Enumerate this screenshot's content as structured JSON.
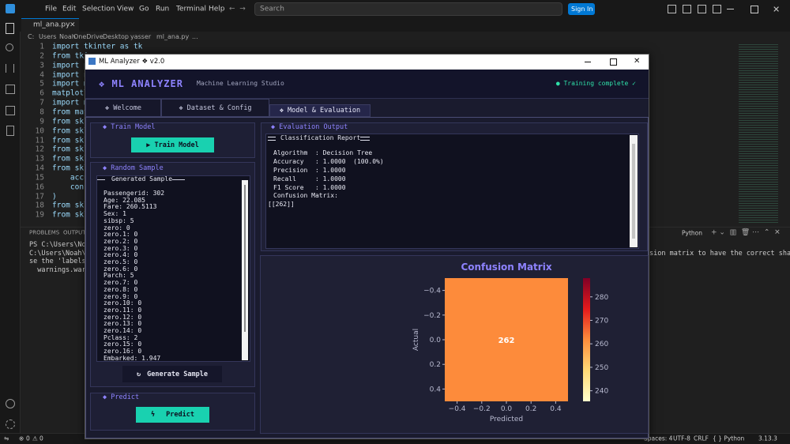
{
  "vscode": {
    "menu": [
      "File",
      "Edit",
      "Selection",
      "View",
      "Go",
      "Run",
      "Terminal",
      "Help"
    ],
    "search": "Search",
    "sign_in": "Sign In",
    "tab": "ml_ana.py",
    "breadcrumb": [
      "C:",
      "Users",
      "Noah",
      "OneDrive",
      "Desktop",
      "yasser",
      "ml_ana.py",
      "..."
    ],
    "code": {
      "numbers": [
        1,
        2,
        3,
        4,
        5,
        6,
        7,
        8,
        9,
        10,
        11,
        12,
        13,
        14,
        15,
        16,
        17,
        18,
        19
      ],
      "lines": [
        "import tkinter as tk",
        "from tkin",
        "import p",
        "import nu",
        "import ma",
        "matplotli",
        "import ma",
        "from matp",
        "from skle",
        "from skle",
        "from skle",
        "from skle",
        "from skle",
        "from skle",
        "    accur",
        "    confu",
        ")",
        "from skle",
        "from skle"
      ]
    },
    "panel_tabs": [
      "PROBLEMS",
      "OUTPUT"
    ],
    "terminal": [
      "PS C:\\Users\\Noah",
      "C:\\Users\\Noah\\App",
      "se the 'labels' p",
      "  warnings.warn("
    ],
    "terminal_right": "sion matrix to have the correct shape, u",
    "terminal_profile": "Python",
    "status": {
      "errors": 0,
      "warnings": 0,
      "spaces": "Spaces: 4",
      "encoding": "UTF-8",
      "eol": "CRLF",
      "language": "{ } Python",
      "version": "3.13.3"
    }
  },
  "app": {
    "window_title": "ML Analyzer ❖ v2.0",
    "brand": "❖ ML ANALYZER",
    "subtitle": "Machine Learning Studio",
    "status": "● Training complete ✓",
    "tabs": [
      "❖  Welcome",
      "❖  Dataset & Config",
      "❖  Model & Evaluation"
    ],
    "train": {
      "header": "◆ Train Model",
      "button": "▶  Train Model"
    },
    "sample": {
      "header": "◆ Random Sample",
      "group": "Generated Sample",
      "lines": [
        "Passengerid: 302",
        "Age: 22.085",
        "Fare: 260.5113",
        "Sex: 1",
        "sibsp: 5",
        "zero: 0",
        "zero.1: 0",
        "zero.2: 0",
        "zero.3: 0",
        "zero.4: 0",
        "zero.5: 0",
        "zero.6: 0",
        "Parch: 5",
        "zero.7: 0",
        "zero.8: 0",
        "zero.9: 0",
        "zero.10: 0",
        "zero.11: 0",
        "zero.12: 0",
        "zero.13: 0",
        "zero.14: 0",
        "Pclass: 2",
        "zero.15: 0",
        "zero.16: 0",
        "Embarked: 1.947"
      ],
      "button": "Generate Sample"
    },
    "predict": {
      "header": "◆ Predict",
      "button": "Predict"
    },
    "evaluation": {
      "header": "◆ Evaluation Output",
      "report_title": "Classification Report",
      "metrics": [
        "Algorithm  : Decision Tree",
        "Accuracy   : 1.0000  (100.0%)",
        "Precision  : 1.0000",
        "Recall     : 1.0000",
        "F1 Score   : 1.0000"
      ],
      "matrix_label": "Confusion Matrix:",
      "matrix_text": "[[262]]"
    },
    "heatmap": {
      "type": "heatmap",
      "title": "Confusion Matrix",
      "xlabel": "Predicted",
      "ylabel": "Actual",
      "values": [
        [
          262
        ]
      ],
      "value_labels": [
        [
          "262"
        ]
      ],
      "xlim": [
        -0.5,
        0.5
      ],
      "ylim": [
        0.5,
        -0.5
      ],
      "xticks": [
        {
          "value": -0.4,
          "label": "−0.4"
        },
        {
          "value": -0.2,
          "label": "−0.2"
        },
        {
          "value": 0,
          "label": "0.0"
        },
        0.2,
        0.4
      ],
      "yticks": [
        {
          "value": -0.4,
          "label": "−0.4"
        },
        {
          "value": -0.2,
          "label": "−0.2"
        },
        {
          "value": 0,
          "label": "0.0"
        },
        0.2,
        0.4
      ],
      "clim": [
        235.5,
        288
      ],
      "cticks": [
        240,
        250,
        260,
        270,
        280
      ],
      "colormap": [
        "#ffffcc",
        "#fed976",
        "#fd8d3c",
        "#e31a1c",
        "#800026"
      ]
    }
  }
}
